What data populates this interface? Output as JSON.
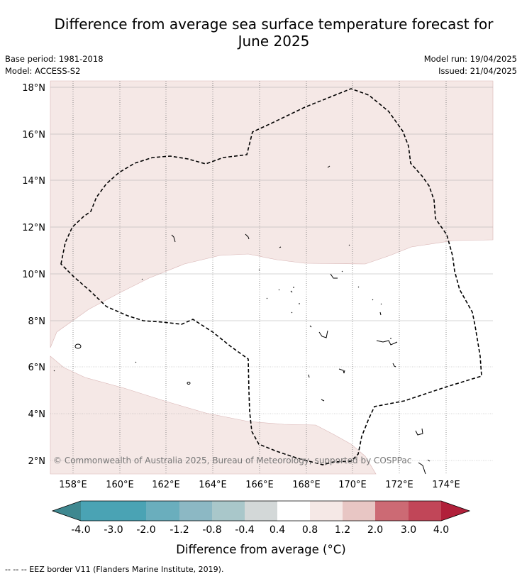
{
  "header": {
    "title_line1": "Difference from average sea surface temperature forecast for",
    "title_line2": "June 2025",
    "base_period": "Base period: 1981-2018",
    "model": "Model: ACCESS-S2",
    "model_run": "Model run: 19/04/2025",
    "issued": "Issued: 21/04/2025"
  },
  "map": {
    "lat_labels": [
      "18°N",
      "16°N",
      "14°N",
      "12°N",
      "10°N",
      "8°N",
      "6°N",
      "4°N",
      "2°N"
    ],
    "lon_labels": [
      "158°E",
      "160°E",
      "162°E",
      "164°E",
      "166°E",
      "168°E",
      "170°E",
      "172°E",
      "174°E"
    ],
    "copyright": "© Commonwealth of Australia 2025, Bureau of Meteorology, supported by COSPPac",
    "colors": {
      "anomaly_0_4_to_0_8": "#f5e8e6",
      "anomaly_neutral": "#ffffff",
      "eez_border": "#000000"
    }
  },
  "colorbar": {
    "labels": [
      "-4.0",
      "-3.0",
      "-2.0",
      "-1.2",
      "-0.8",
      "-0.4",
      "0.4",
      "0.8",
      "1.2",
      "2.0",
      "3.0",
      "4.0"
    ],
    "colors": [
      "#3f8890",
      "#4aa3b4",
      "#6aaebd",
      "#8cb8c4",
      "#a9c7ca",
      "#d3d8d8",
      "#ffffff",
      "#f5e8e6",
      "#e8c6c4",
      "#d98f99",
      "#cc6a74",
      "#c14658",
      "#b1203a"
    ],
    "title": "Difference from average (°C)"
  },
  "footer": {
    "legend": "--  --  -- EEZ border V11 (Flanders Marine Institute, 2019)."
  }
}
